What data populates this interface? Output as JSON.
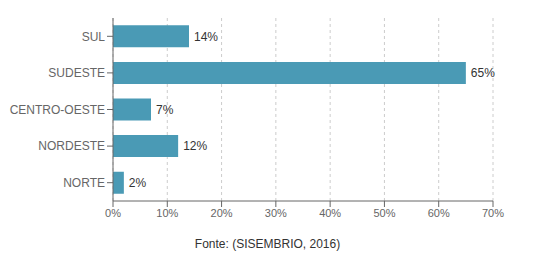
{
  "chart_data": {
    "type": "bar",
    "orientation": "horizontal",
    "categories": [
      "SUL",
      "SUDESTE",
      "CENTRO-OESTE",
      "NORDESTE",
      "NORTE"
    ],
    "values": [
      14,
      65,
      7,
      12,
      2
    ],
    "value_labels": [
      "14%",
      "65%",
      "7%",
      "12%",
      "2%"
    ],
    "data_labels": true,
    "color": "#4a9ab5",
    "xlim": [
      0,
      70
    ],
    "xticks": [
      {
        "value": 0,
        "label": "0%"
      },
      {
        "value": 10,
        "label": "10%"
      },
      {
        "value": 20,
        "label": "20%"
      },
      {
        "value": 30,
        "label": "30%"
      },
      {
        "value": 40,
        "label": "40%"
      },
      {
        "value": 50,
        "label": "50%"
      },
      {
        "value": 60,
        "label": "60%"
      },
      {
        "value": 70,
        "label": "70%"
      }
    ],
    "grid": true,
    "annotations": [
      "Fonte: (SISEMBRIO, 2016)"
    ]
  }
}
